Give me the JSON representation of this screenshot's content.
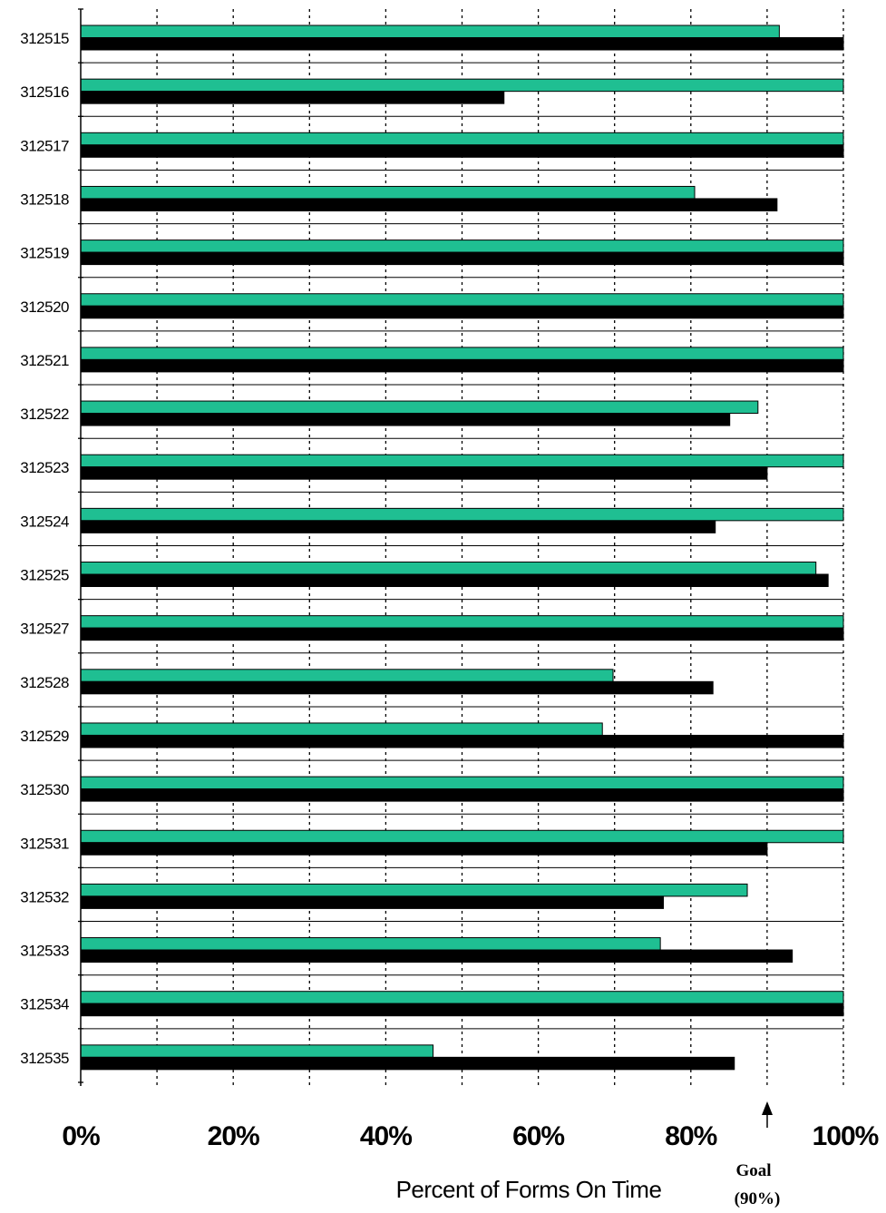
{
  "chart_data": {
    "type": "bar",
    "orientation": "horizontal",
    "categories": [
      "312515",
      "312516",
      "312517",
      "312518",
      "312519",
      "312520",
      "312521",
      "312522",
      "312523",
      "312524",
      "312525",
      "312527",
      "312528",
      "312529",
      "312530",
      "312531",
      "312532",
      "312533",
      "312534",
      "312535"
    ],
    "series": [
      {
        "color": "#1fbf92",
        "values": [
          91.6,
          100,
          100,
          80.5,
          100,
          100,
          100,
          88.8,
          100,
          100,
          96.4,
          100,
          69.8,
          68.4,
          100,
          100,
          87.4,
          76,
          100,
          46.2
        ]
      },
      {
        "color": "#000000",
        "values": [
          100,
          55.5,
          100,
          91.3,
          100,
          100,
          100,
          85.1,
          90,
          83.2,
          98,
          100,
          82.9,
          100,
          100,
          90,
          76.4,
          93.3,
          100,
          85.7
        ]
      }
    ],
    "xlim": [
      0,
      100
    ],
    "xticks": [
      "0%",
      "20%",
      "40%",
      "60%",
      "80%",
      "100%"
    ],
    "xlabel": "Percent of Forms On Time",
    "grid": "vertical dashed every 10%",
    "goal": {
      "value": 90,
      "label_line1": "Goal",
      "label_line2": "(90%)"
    }
  }
}
